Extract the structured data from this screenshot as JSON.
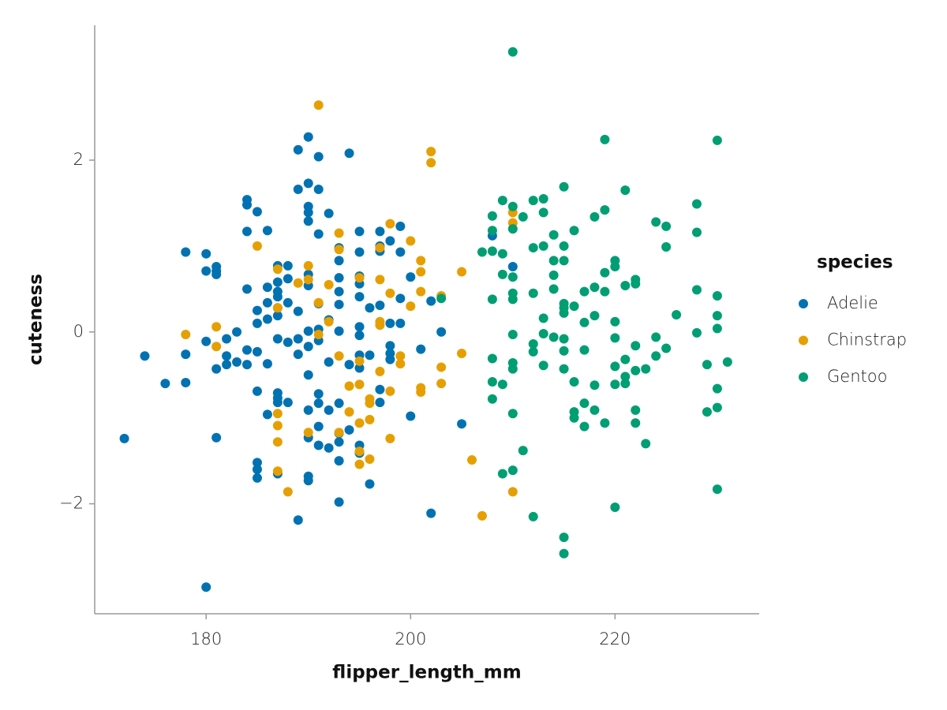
{
  "chart_data": {
    "type": "scatter",
    "x_label": "flipper_length_mm",
    "y_label": "cuteness",
    "legend_title": "species",
    "legend": "right",
    "xlim": [
      169.1,
      234.1
    ],
    "ylim": [
      -3.28,
      3.57
    ],
    "xticks": [
      180,
      200,
      220
    ],
    "yticks": [
      {
        "value": -2,
        "label": "−2"
      },
      0,
      2
    ],
    "grid": false,
    "series": [
      {
        "name": "Adelie",
        "color": "#0072b2",
        "x": [
          172,
          174,
          176,
          178,
          178,
          178,
          180,
          180,
          180,
          180,
          181,
          181,
          181,
          181,
          181,
          182,
          182,
          182,
          183,
          183,
          184,
          184,
          184,
          184,
          184,
          184,
          185,
          185,
          185,
          185,
          185,
          185,
          185,
          185,
          186,
          186,
          186,
          186,
          186,
          186,
          187,
          187,
          187,
          187,
          187,
          187,
          187,
          187,
          187,
          187,
          187,
          188,
          188,
          188,
          188,
          188,
          189,
          189,
          189,
          189,
          189,
          189,
          190,
          190,
          190,
          190,
          190,
          190,
          190,
          190,
          190,
          190,
          190,
          190,
          190,
          190,
          191,
          191,
          191,
          191,
          191,
          191,
          191,
          191,
          191,
          191,
          192,
          192,
          192,
          192,
          192,
          193,
          193,
          193,
          193,
          193,
          193,
          193,
          193,
          193,
          193,
          193,
          194,
          194,
          194,
          195,
          195,
          195,
          195,
          195,
          195,
          195,
          195,
          195,
          195,
          195,
          196,
          196,
          196,
          197,
          197,
          197,
          197,
          197,
          197,
          198,
          198,
          198,
          198,
          198,
          199,
          199,
          199,
          199,
          200,
          200,
          201,
          202,
          202,
          203,
          205,
          208,
          210
        ],
        "values": [
          -1.24,
          -0.28,
          -0.6,
          0.93,
          -0.26,
          -0.59,
          0.91,
          0.71,
          -0.11,
          -2.97,
          0.76,
          0.71,
          0.67,
          -0.43,
          -1.23,
          -0.08,
          -0.28,
          -0.38,
          0.0,
          -0.35,
          1.54,
          1.48,
          1.17,
          0.5,
          -0.21,
          -0.38,
          1.4,
          0.25,
          0.1,
          -0.23,
          -0.69,
          -1.52,
          -1.6,
          -1.7,
          1.18,
          0.52,
          0.34,
          0.15,
          -0.37,
          -0.96,
          0.77,
          0.58,
          0.47,
          0.41,
          0.28,
          0.19,
          -0.08,
          -0.71,
          -0.77,
          -0.82,
          -1.65,
          0.77,
          0.62,
          0.34,
          -0.12,
          -0.82,
          2.12,
          1.66,
          0.24,
          -0.08,
          -0.26,
          -2.19,
          2.27,
          1.73,
          1.46,
          1.39,
          1.29,
          0.67,
          0.54,
          0.01,
          -0.17,
          -0.5,
          -0.91,
          -1.23,
          -1.68,
          -1.73,
          2.04,
          1.66,
          1.14,
          0.33,
          0.03,
          -0.1,
          -0.72,
          -0.83,
          -1.1,
          -1.32,
          1.38,
          0.14,
          -0.35,
          -0.91,
          -1.35,
          0.98,
          0.83,
          0.63,
          0.47,
          0.32,
          0.01,
          -0.83,
          -1.18,
          -1.28,
          -1.5,
          -1.98,
          2.08,
          -0.38,
          -1.14,
          1.17,
          0.93,
          0.65,
          0.56,
          0.41,
          0.06,
          -0.04,
          -0.27,
          -0.42,
          -1.32,
          -1.41,
          0.28,
          -0.27,
          -1.77,
          1.17,
          1.0,
          0.94,
          0.31,
          -0.67,
          -0.82,
          1.06,
          0.1,
          -0.16,
          -0.25,
          -0.32,
          1.23,
          0.93,
          0.39,
          0.1,
          0.64,
          -0.98,
          -0.2,
          0.36,
          -2.11,
          0.0,
          -1.07,
          1.12,
          0.76
        ]
      },
      {
        "name": "Chinstrap",
        "color": "#e69f00",
        "x": [
          178,
          181,
          181,
          185,
          187,
          187,
          187,
          187,
          187,
          187,
          188,
          189,
          190,
          190,
          190,
          191,
          191,
          191,
          192,
          192,
          193,
          193,
          193,
          193,
          194,
          194,
          195,
          195,
          195,
          195,
          195,
          195,
          196,
          196,
          196,
          196,
          197,
          197,
          197,
          197,
          197,
          198,
          198,
          198,
          198,
          199,
          199,
          200,
          200,
          201,
          201,
          201,
          201,
          201,
          202,
          202,
          203,
          203,
          203,
          205,
          205,
          206,
          207,
          210,
          210,
          210
        ],
        "values": [
          -0.03,
          0.06,
          -0.17,
          1.0,
          0.73,
          0.28,
          -0.95,
          -1.09,
          -1.28,
          -1.62,
          -1.86,
          0.57,
          0.77,
          0.61,
          -1.17,
          2.64,
          0.34,
          -0.03,
          0.55,
          0.12,
          1.15,
          0.96,
          -0.28,
          -1.17,
          -0.63,
          -0.93,
          0.63,
          -0.34,
          -0.61,
          -1.06,
          -1.39,
          -1.54,
          -0.78,
          -0.83,
          -1.02,
          -1.48,
          0.98,
          0.61,
          0.12,
          0.08,
          -0.46,
          1.26,
          0.45,
          -0.69,
          -1.24,
          -0.28,
          -0.37,
          1.06,
          0.3,
          0.83,
          0.7,
          0.47,
          -0.65,
          -0.7,
          2.1,
          1.97,
          0.42,
          -0.41,
          -0.6,
          0.7,
          -0.25,
          -1.49,
          -2.14,
          1.39,
          1.27,
          -1.86
        ]
      },
      {
        "name": "Gentoo",
        "color": "#009e73",
        "x": [
          203,
          207,
          208,
          208,
          208,
          208,
          208,
          208,
          208,
          209,
          209,
          209,
          209,
          209,
          210,
          210,
          210,
          210,
          210,
          210,
          210,
          210,
          210,
          210,
          210,
          211,
          211,
          212,
          212,
          212,
          212,
          212,
          212,
          213,
          213,
          213,
          213,
          213,
          213,
          214,
          214,
          214,
          214,
          214,
          215,
          215,
          215,
          215,
          215,
          215,
          215,
          215,
          215,
          215,
          215,
          216,
          216,
          216,
          216,
          216,
          217,
          217,
          217,
          217,
          217,
          218,
          218,
          218,
          218,
          218,
          219,
          219,
          219,
          219,
          219,
          220,
          220,
          220,
          220,
          220,
          220,
          220,
          221,
          221,
          221,
          221,
          221,
          222,
          222,
          222,
          222,
          222,
          222,
          223,
          223,
          224,
          224,
          224,
          225,
          225,
          225,
          226,
          228,
          228,
          228,
          228,
          229,
          229,
          230,
          230,
          230,
          230,
          230,
          230,
          230,
          231
        ],
        "values": [
          0.39,
          0.93,
          1.35,
          1.18,
          0.94,
          0.38,
          -0.31,
          -0.58,
          -0.78,
          1.53,
          0.91,
          0.67,
          -0.61,
          -1.65,
          3.26,
          1.46,
          1.2,
          0.64,
          0.45,
          0.38,
          -0.03,
          -0.36,
          -0.43,
          -0.95,
          -1.61,
          1.34,
          -1.38,
          1.53,
          0.98,
          0.45,
          -0.14,
          -0.23,
          -2.15,
          1.55,
          1.39,
          1.0,
          0.16,
          -0.02,
          -0.39,
          1.13,
          0.83,
          0.66,
          0.5,
          -0.06,
          1.69,
          1.0,
          0.83,
          0.33,
          0.28,
          0.22,
          -0.08,
          -0.22,
          -0.43,
          -2.39,
          -2.58,
          1.18,
          0.3,
          -0.58,
          -0.93,
          -1.0,
          0.47,
          0.11,
          -0.21,
          -0.83,
          -1.1,
          1.34,
          0.52,
          0.19,
          -0.62,
          -0.91,
          2.24,
          1.42,
          0.69,
          0.47,
          -1.06,
          0.83,
          0.76,
          0.12,
          -0.07,
          -0.4,
          -0.61,
          -2.04,
          1.65,
          0.54,
          -0.32,
          -0.52,
          -0.6,
          0.61,
          0.56,
          -0.16,
          -0.45,
          -0.91,
          -1.06,
          -0.43,
          -1.3,
          1.28,
          -0.06,
          -0.28,
          1.23,
          0.99,
          -0.19,
          0.2,
          1.49,
          1.16,
          0.49,
          -0.01,
          -0.38,
          -0.93,
          2.23,
          0.42,
          0.19,
          0.04,
          -0.66,
          -0.88,
          -1.83,
          -0.35
        ]
      }
    ]
  }
}
